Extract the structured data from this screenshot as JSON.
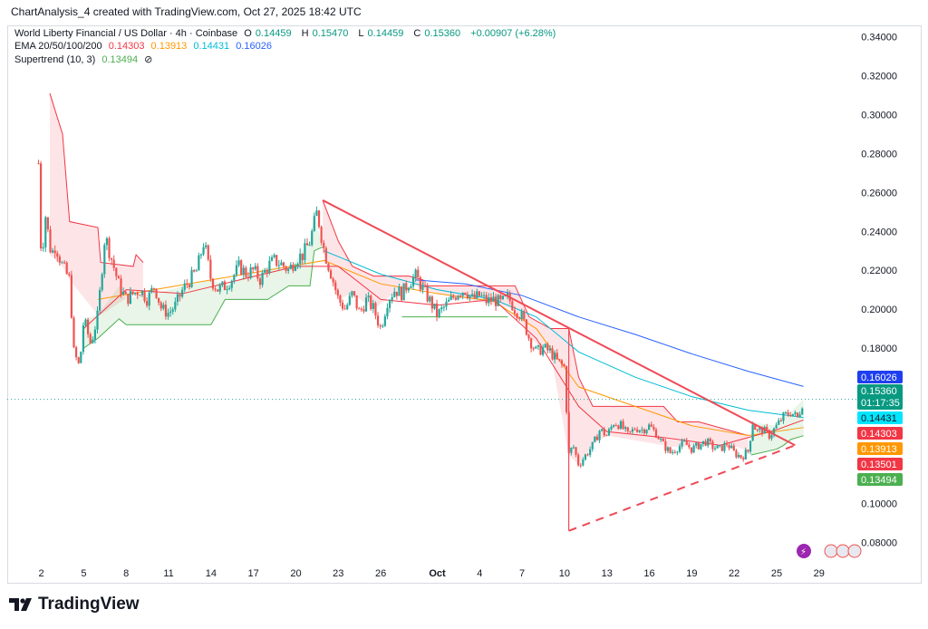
{
  "header": {
    "text": "ChartAnalysis_4 created with TradingView.com, Oct 27, 2025 18:42 UTC"
  },
  "legend": {
    "symbol": "World Liberty Financial / US Dollar · 4h · Coinbase",
    "open_label": "O",
    "open": "0.14459",
    "high_label": "H",
    "high": "0.15470",
    "low_label": "L",
    "low": "0.14459",
    "close_label": "C",
    "close": "0.15360",
    "change": "+0.00907 (+6.28%)",
    "ema_label": "EMA 20/50/100/200",
    "ema20": "0.14303",
    "ema50": "0.13913",
    "ema100": "0.14431",
    "ema200": "0.16026",
    "supertrend_label": "Supertrend (10, 3)",
    "supertrend": "0.13494",
    "hide_symbol": "⊘"
  },
  "colors": {
    "up": "#26a69a",
    "down": "#ef5350",
    "ema20": "#f23645",
    "ema50": "#ff9800",
    "ema100": "#00bcd4",
    "ema200": "#2962ff",
    "supertrend_up": "#4caf50",
    "supertrend_down": "#f23645",
    "trendline": "#ef4a55"
  },
  "price_badges": {
    "ema200": "0.16026",
    "last": "0.15360",
    "countdown": "01:17:35",
    "ema100": "0.14431",
    "ema20": "0.14303",
    "ema50": "0.13913",
    "st_line": "0.13501",
    "supertrend": "0.13494"
  },
  "footer": {
    "brand": "TradingView"
  },
  "chart_data": {
    "type": "candlestick",
    "y_axis": {
      "min": 0.07,
      "max": 0.345,
      "ticks": [
        0.34,
        0.32,
        0.3,
        0.28,
        0.26,
        0.24,
        0.22,
        0.2,
        0.18,
        0.1,
        0.08
      ],
      "tick_labels": [
        "0.34000",
        "0.32000",
        "0.30000",
        "0.28000",
        "0.26000",
        "0.24000",
        "0.22000",
        "0.20000",
        "0.18000",
        "0.10000",
        "0.08000"
      ]
    },
    "x_axis": {
      "start_day": 1.5,
      "end_day": 29.8,
      "ticks": [
        {
          "day": 2,
          "label": "2"
        },
        {
          "day": 5,
          "label": "5"
        },
        {
          "day": 8,
          "label": "8"
        },
        {
          "day": 11,
          "label": "11"
        },
        {
          "day": 14,
          "label": "14"
        },
        {
          "day": 17,
          "label": "17"
        },
        {
          "day": 20,
          "label": "20"
        },
        {
          "day": 23,
          "label": "23"
        },
        {
          "day": 26,
          "label": "26"
        },
        {
          "day": 30,
          "label": "Oct",
          "bold": true
        },
        {
          "day": 33,
          "label": "4"
        },
        {
          "day": 36,
          "label": "7"
        },
        {
          "day": 39,
          "label": "10"
        },
        {
          "day": 42,
          "label": "13"
        },
        {
          "day": 45,
          "label": "16"
        },
        {
          "day": 48,
          "label": "19"
        },
        {
          "day": 51,
          "label": "22"
        },
        {
          "day": 54,
          "label": "25"
        },
        {
          "day": 57,
          "label": "29"
        }
      ]
    },
    "close_path": [
      [
        1.8,
        0.275
      ],
      [
        2.0,
        0.225
      ],
      [
        2.3,
        0.248
      ],
      [
        2.7,
        0.228
      ],
      [
        3.0,
        0.233
      ],
      [
        3.5,
        0.222
      ],
      [
        4.0,
        0.215
      ],
      [
        4.3,
        0.178
      ],
      [
        4.7,
        0.17
      ],
      [
        5.0,
        0.195
      ],
      [
        5.5,
        0.182
      ],
      [
        6.0,
        0.197
      ],
      [
        6.5,
        0.238
      ],
      [
        7.0,
        0.225
      ],
      [
        7.5,
        0.212
      ],
      [
        8.0,
        0.205
      ],
      [
        8.5,
        0.208
      ],
      [
        9.0,
        0.21
      ],
      [
        9.5,
        0.205
      ],
      [
        10.0,
        0.212
      ],
      [
        10.5,
        0.2
      ],
      [
        11.0,
        0.198
      ],
      [
        11.5,
        0.202
      ],
      [
        12.0,
        0.21
      ],
      [
        12.5,
        0.215
      ],
      [
        13.0,
        0.22
      ],
      [
        13.5,
        0.235
      ],
      [
        14.0,
        0.215
      ],
      [
        14.5,
        0.21
      ],
      [
        15.0,
        0.212
      ],
      [
        15.5,
        0.216
      ],
      [
        16.0,
        0.222
      ],
      [
        16.5,
        0.218
      ],
      [
        17.0,
        0.22
      ],
      [
        17.5,
        0.215
      ],
      [
        18.0,
        0.222
      ],
      [
        18.5,
        0.225
      ],
      [
        19.0,
        0.223
      ],
      [
        19.5,
        0.22
      ],
      [
        20.0,
        0.226
      ],
      [
        20.5,
        0.228
      ],
      [
        21.0,
        0.235
      ],
      [
        21.5,
        0.25
      ],
      [
        22.0,
        0.23
      ],
      [
        22.5,
        0.218
      ],
      [
        23.0,
        0.205
      ],
      [
        23.5,
        0.2
      ],
      [
        24.0,
        0.208
      ],
      [
        24.5,
        0.198
      ],
      [
        25.0,
        0.205
      ],
      [
        25.5,
        0.2
      ],
      [
        26.0,
        0.19
      ],
      [
        26.5,
        0.205
      ],
      [
        27.0,
        0.21
      ],
      [
        27.5,
        0.208
      ],
      [
        28.0,
        0.214
      ],
      [
        28.5,
        0.217
      ],
      [
        29.0,
        0.21
      ],
      [
        29.5,
        0.204
      ],
      [
        30.0,
        0.197
      ],
      [
        30.5,
        0.201
      ],
      [
        31.0,
        0.205
      ],
      [
        31.5,
        0.209
      ],
      [
        32.0,
        0.21
      ],
      [
        32.5,
        0.205
      ],
      [
        33.0,
        0.207
      ],
      [
        33.5,
        0.204
      ],
      [
        34.0,
        0.205
      ],
      [
        34.5,
        0.203
      ],
      [
        35.0,
        0.206
      ],
      [
        35.5,
        0.2
      ],
      [
        36.0,
        0.196
      ],
      [
        36.5,
        0.185
      ],
      [
        37.0,
        0.178
      ],
      [
        37.5,
        0.18
      ],
      [
        38.0,
        0.178
      ],
      [
        38.5,
        0.173
      ],
      [
        39.0,
        0.17
      ],
      [
        39.3,
        0.125
      ],
      [
        39.6,
        0.13
      ],
      [
        40.0,
        0.12
      ],
      [
        40.5,
        0.125
      ],
      [
        41.0,
        0.13
      ],
      [
        41.5,
        0.138
      ],
      [
        42.0,
        0.135
      ],
      [
        42.5,
        0.142
      ],
      [
        43.0,
        0.14
      ],
      [
        43.5,
        0.135
      ],
      [
        44.0,
        0.139
      ],
      [
        44.5,
        0.138
      ],
      [
        45.0,
        0.14
      ],
      [
        45.5,
        0.136
      ],
      [
        46.0,
        0.13
      ],
      [
        46.5,
        0.126
      ],
      [
        47.0,
        0.129
      ],
      [
        47.5,
        0.131
      ],
      [
        48.0,
        0.128
      ],
      [
        48.5,
        0.13
      ],
      [
        49.0,
        0.132
      ],
      [
        49.5,
        0.129
      ],
      [
        50.0,
        0.128
      ],
      [
        50.5,
        0.131
      ],
      [
        51.0,
        0.126
      ],
      [
        51.5,
        0.124
      ],
      [
        52.0,
        0.127
      ],
      [
        52.3,
        0.142
      ],
      [
        52.6,
        0.137
      ],
      [
        53.0,
        0.138
      ],
      [
        53.5,
        0.135
      ],
      [
        54.0,
        0.14
      ],
      [
        54.5,
        0.145
      ],
      [
        55.0,
        0.147
      ],
      [
        55.5,
        0.144
      ],
      [
        55.9,
        0.1536
      ]
    ],
    "ema200": [
      [
        28.5,
        0.215
      ],
      [
        32,
        0.213
      ],
      [
        36,
        0.207
      ],
      [
        40,
        0.196
      ],
      [
        44,
        0.187
      ],
      [
        48,
        0.177
      ],
      [
        52,
        0.168
      ],
      [
        55.9,
        0.16026
      ]
    ],
    "ema100": [
      [
        22,
        0.23
      ],
      [
        26,
        0.218
      ],
      [
        30,
        0.21
      ],
      [
        34,
        0.205
      ],
      [
        37,
        0.196
      ],
      [
        40,
        0.178
      ],
      [
        44,
        0.165
      ],
      [
        48,
        0.155
      ],
      [
        52,
        0.148
      ],
      [
        55.9,
        0.14431
      ]
    ],
    "ema50": [
      [
        6,
        0.205
      ],
      [
        10,
        0.21
      ],
      [
        14,
        0.215
      ],
      [
        18,
        0.22
      ],
      [
        22,
        0.225
      ],
      [
        26,
        0.213
      ],
      [
        30,
        0.208
      ],
      [
        34,
        0.204
      ],
      [
        37,
        0.19
      ],
      [
        40,
        0.16
      ],
      [
        44,
        0.15
      ],
      [
        48,
        0.14
      ],
      [
        52,
        0.135
      ],
      [
        55.9,
        0.13913
      ]
    ],
    "ema20": [
      [
        5,
        0.19
      ],
      [
        8,
        0.21
      ],
      [
        12,
        0.208
      ],
      [
        16,
        0.215
      ],
      [
        20,
        0.222
      ],
      [
        23,
        0.222
      ],
      [
        26,
        0.205
      ],
      [
        30,
        0.202
      ],
      [
        34,
        0.205
      ],
      [
        37,
        0.185
      ],
      [
        40,
        0.15
      ],
      [
        42,
        0.137
      ],
      [
        46,
        0.134
      ],
      [
        50,
        0.13
      ],
      [
        54,
        0.138
      ],
      [
        55.9,
        0.14303
      ]
    ],
    "supertrend_down": [
      [
        2.6,
        0.311
      ],
      [
        3.5,
        0.29
      ],
      [
        4.0,
        0.245
      ],
      [
        6.0,
        0.242
      ],
      [
        6.2,
        0.224
      ],
      [
        8.5,
        0.222
      ],
      [
        8.7,
        0.228
      ],
      [
        9.2,
        0.224
      ],
      [
        21.9,
        0.256
      ],
      [
        23.0,
        0.235
      ],
      [
        24.0,
        0.222
      ],
      [
        25.5,
        0.217
      ],
      [
        28.0,
        0.217
      ],
      [
        29.0,
        0.215
      ],
      [
        29.0,
        0.212
      ],
      [
        35.5,
        0.212
      ],
      [
        36.5,
        0.196
      ],
      [
        38.0,
        0.19
      ],
      [
        39.3,
        0.19
      ],
      [
        40.0,
        0.165
      ],
      [
        41.0,
        0.15
      ],
      [
        42.0,
        0.15
      ],
      [
        46.0,
        0.15
      ],
      [
        47.0,
        0.142
      ],
      [
        48.5,
        0.142
      ],
      [
        50.5,
        0.138
      ],
      [
        52.0,
        0.135
      ]
    ],
    "supertrend_up": [
      [
        5.0,
        0.18
      ],
      [
        6.0,
        0.185
      ],
      [
        7.5,
        0.195
      ],
      [
        8.0,
        0.192
      ],
      [
        14.0,
        0.192
      ],
      [
        15.0,
        0.205
      ],
      [
        18.0,
        0.205
      ],
      [
        19.5,
        0.212
      ],
      [
        21.0,
        0.212
      ],
      [
        21.3,
        0.23
      ],
      [
        21.9,
        0.232
      ],
      [
        27.5,
        0.196
      ],
      [
        35.0,
        0.196
      ],
      [
        52.2,
        0.125
      ],
      [
        54.0,
        0.128
      ],
      [
        54.5,
        0.13
      ],
      [
        55.0,
        0.133
      ],
      [
        55.9,
        0.13494
      ]
    ],
    "trendline_desc": [
      [
        21.9,
        0.256
      ],
      [
        55.3,
        0.13
      ]
    ],
    "trendline_asc": [
      [
        39.3,
        0.086
      ],
      [
        55.3,
        0.13
      ]
    ],
    "drop_line": [
      [
        39.3,
        0.19
      ],
      [
        39.3,
        0.086
      ]
    ],
    "last_price": 0.1536
  }
}
